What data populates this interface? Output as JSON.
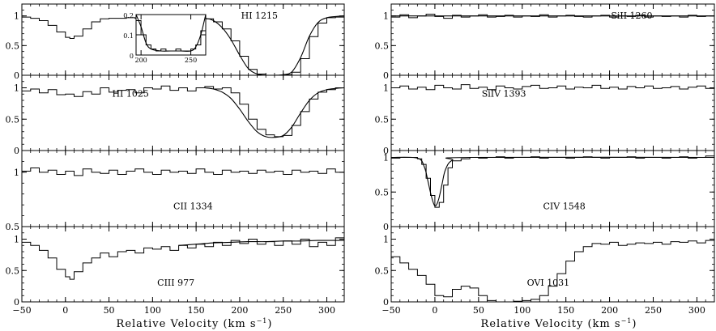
{
  "figure": {
    "left_column_xlabel": "Relative  Velocity  (km s",
    "right_column_xlabel": "Relative  Velocity  (km s",
    "xlabel_superscript": "−1",
    "xlabel_close": ")"
  },
  "chart_data": [
    {
      "type": "line",
      "column": "left",
      "row": 0,
      "label": "HI 1215",
      "xlim": [
        -50,
        320
      ],
      "ylim": [
        0,
        1.2
      ],
      "x_ticks": [],
      "y_ticks": [
        0,
        0.5,
        1
      ],
      "y_tick_labels": [
        "0",
        "0.5",
        "1"
      ],
      "series": [
        {
          "style": "step",
          "x": [
            -50,
            -40,
            -30,
            -20,
            -10,
            0,
            5,
            10,
            20,
            30,
            40,
            50,
            60,
            70,
            80,
            90,
            100,
            110,
            120,
            130,
            140,
            150,
            160,
            170,
            180,
            190,
            200,
            210,
            220,
            230,
            240,
            250,
            260,
            270,
            280,
            290,
            300,
            310,
            320
          ],
          "values": [
            0.98,
            0.96,
            0.92,
            0.84,
            0.73,
            0.64,
            0.62,
            0.66,
            0.78,
            0.9,
            0.95,
            0.96,
            0.96,
            0.97,
            0.96,
            0.97,
            0.98,
            0.97,
            0.97,
            0.98,
            0.98,
            0.97,
            0.95,
            0.9,
            0.78,
            0.58,
            0.32,
            0.1,
            0.02,
            0.0,
            0.0,
            0.01,
            0.05,
            0.28,
            0.65,
            0.88,
            0.97,
            0.98,
            0.98
          ]
        },
        {
          "style": "smooth",
          "x": [
            140,
            160,
            170,
            180,
            190,
            200,
            210,
            220,
            230,
            240,
            250,
            260,
            270,
            280,
            290,
            300,
            310,
            320
          ],
          "values": [
            0.98,
            0.96,
            0.92,
            0.8,
            0.6,
            0.34,
            0.11,
            0.02,
            0.0,
            0.0,
            0.01,
            0.06,
            0.3,
            0.66,
            0.89,
            0.97,
            0.99,
            1.0
          ]
        }
      ],
      "inset": {
        "xlim": [
          195,
          265
        ],
        "ylim": [
          0,
          0.2
        ],
        "x_ticks": [
          200,
          250
        ],
        "x_tick_labels": [
          "200",
          "250"
        ],
        "y_ticks": [
          0,
          0.1,
          0.2
        ],
        "y_tick_labels": [
          "0",
          "0.1",
          "0.2"
        ],
        "series": [
          {
            "style": "step",
            "x": [
              195,
              200,
              205,
              210,
              215,
              220,
              225,
              230,
              235,
              240,
              245,
              250,
              255,
              260,
              265
            ],
            "values": [
              0.17,
              0.1,
              0.05,
              0.03,
              0.02,
              0.03,
              0.02,
              0.02,
              0.03,
              0.02,
              0.02,
              0.03,
              0.05,
              0.12,
              0.2
            ]
          },
          {
            "style": "smooth",
            "x": [
              195,
              200,
              205,
              210,
              220,
              230,
              240,
              250,
              255,
              260,
              265
            ],
            "values": [
              0.2,
              0.14,
              0.06,
              0.03,
              0.02,
              0.02,
              0.02,
              0.02,
              0.04,
              0.1,
              0.2
            ]
          }
        ]
      }
    },
    {
      "type": "line",
      "column": "left",
      "row": 1,
      "label": "HI 1025",
      "xlim": [
        -50,
        320
      ],
      "ylim": [
        0,
        1.2
      ],
      "x_ticks": [],
      "y_ticks": [
        0,
        0.5,
        1
      ],
      "y_tick_labels": [
        "0",
        "0.5",
        "1"
      ],
      "series": [
        {
          "style": "step",
          "x": [
            -50,
            -40,
            -30,
            -20,
            -10,
            0,
            10,
            20,
            30,
            40,
            50,
            60,
            70,
            80,
            90,
            100,
            110,
            120,
            130,
            140,
            150,
            160,
            170,
            180,
            190,
            200,
            210,
            220,
            230,
            240,
            250,
            260,
            270,
            280,
            290,
            300,
            310,
            320
          ],
          "values": [
            0.95,
            0.98,
            0.92,
            0.97,
            0.89,
            0.9,
            0.86,
            0.94,
            0.9,
            1.0,
            0.93,
            0.96,
            0.97,
            0.92,
            1.0,
            0.98,
            1.03,
            0.96,
            1.0,
            0.95,
            1.0,
            1.02,
            0.98,
            1.0,
            0.92,
            0.74,
            0.5,
            0.34,
            0.25,
            0.22,
            0.24,
            0.4,
            0.62,
            0.82,
            0.93,
            0.97,
            1.0,
            0.98
          ]
        },
        {
          "style": "smooth",
          "x": [
            160,
            170,
            180,
            190,
            200,
            210,
            220,
            230,
            240,
            250,
            260,
            270,
            280,
            290,
            300,
            310,
            320
          ],
          "values": [
            1.0,
            0.98,
            0.93,
            0.83,
            0.66,
            0.46,
            0.3,
            0.22,
            0.21,
            0.24,
            0.38,
            0.6,
            0.8,
            0.92,
            0.97,
            0.99,
            1.0
          ]
        }
      ]
    },
    {
      "type": "line",
      "column": "left",
      "row": 2,
      "label": "CII 1334",
      "xlim": [
        -50,
        320
      ],
      "ylim": [
        0.5,
        1.2
      ],
      "x_ticks": [],
      "y_ticks": [
        0.5,
        1
      ],
      "y_tick_labels": [
        "0.5",
        "1"
      ],
      "series": [
        {
          "style": "step",
          "x": [
            -50,
            -40,
            -30,
            -20,
            -10,
            0,
            10,
            20,
            30,
            40,
            50,
            60,
            70,
            80,
            90,
            100,
            110,
            120,
            130,
            140,
            150,
            160,
            170,
            180,
            190,
            200,
            210,
            220,
            230,
            240,
            250,
            260,
            270,
            280,
            290,
            300,
            310,
            320
          ],
          "values": [
            1.01,
            1.04,
            1.0,
            1.02,
            0.98,
            1.01,
            0.97,
            1.03,
            1.0,
            0.99,
            1.02,
            0.98,
            1.01,
            1.03,
            1.0,
            0.98,
            1.02,
            1.0,
            1.01,
            0.99,
            1.03,
            1.0,
            0.98,
            1.02,
            1.0,
            1.01,
            0.99,
            1.02,
            1.0,
            1.01,
            0.98,
            1.02,
            1.0,
            1.01,
            0.99,
            1.03,
            1.0,
            1.01
          ]
        }
      ]
    },
    {
      "type": "line",
      "column": "left",
      "row": 3,
      "label": "CIII 977",
      "xlim": [
        -50,
        320
      ],
      "ylim": [
        0,
        1.2
      ],
      "x_ticks": [
        -50,
        0,
        50,
        100,
        150,
        200,
        250,
        300
      ],
      "x_tick_labels": [
        "−50",
        "0",
        "50",
        "100",
        "150",
        "200",
        "250",
        "300"
      ],
      "y_ticks": [
        0,
        0.5,
        1
      ],
      "y_tick_labels": [
        "0",
        "0.5",
        "1"
      ],
      "series": [
        {
          "style": "step",
          "x": [
            -50,
            -40,
            -30,
            -20,
            -10,
            0,
            5,
            10,
            20,
            30,
            40,
            50,
            60,
            70,
            80,
            90,
            100,
            110,
            120,
            130,
            140,
            150,
            160,
            170,
            180,
            190,
            200,
            210,
            220,
            230,
            240,
            250,
            260,
            270,
            280,
            290,
            300,
            310,
            320
          ],
          "values": [
            0.95,
            0.9,
            0.82,
            0.7,
            0.52,
            0.4,
            0.36,
            0.48,
            0.62,
            0.7,
            0.78,
            0.72,
            0.8,
            0.82,
            0.78,
            0.86,
            0.84,
            0.88,
            0.82,
            0.9,
            0.86,
            0.92,
            0.88,
            0.95,
            0.9,
            0.98,
            0.93,
            1.0,
            0.92,
            0.96,
            0.9,
            0.97,
            0.92,
            1.0,
            0.88,
            0.95,
            0.9,
            1.02,
            0.88
          ]
        },
        {
          "style": "smooth",
          "x": [
            130,
            150,
            170,
            190,
            210,
            230,
            250,
            270,
            290,
            310,
            320
          ],
          "values": [
            0.9,
            0.92,
            0.94,
            0.95,
            0.96,
            0.96,
            0.97,
            0.97,
            0.98,
            0.98,
            0.98
          ]
        }
      ]
    },
    {
      "type": "line",
      "column": "right",
      "row": 0,
      "label": "SiII 1260",
      "xlim": [
        -50,
        320
      ],
      "ylim": [
        0,
        1.2
      ],
      "x_ticks": [],
      "y_ticks": [
        0,
        0.5,
        1
      ],
      "y_tick_labels": [
        "0",
        "0.5",
        "1"
      ],
      "series": [
        {
          "style": "step",
          "x": [
            -50,
            -40,
            -30,
            -20,
            -10,
            0,
            10,
            20,
            30,
            40,
            50,
            60,
            70,
            80,
            90,
            100,
            110,
            120,
            130,
            140,
            150,
            160,
            170,
            180,
            190,
            200,
            210,
            220,
            230,
            240,
            250,
            260,
            270,
            280,
            290,
            300,
            310,
            320
          ],
          "values": [
            0.98,
            1.02,
            0.97,
            1.0,
            1.03,
            0.99,
            0.96,
            1.01,
            0.98,
            1.0,
            1.02,
            0.98,
            0.99,
            1.01,
            0.98,
            1.0,
            0.99,
            1.02,
            0.98,
            1.0,
            1.01,
            0.99,
            0.98,
            1.0,
            1.01,
            0.98,
            1.0,
            0.99,
            1.01,
            0.98,
            1.0,
            0.99,
            1.0,
            0.98,
            1.01,
            0.99,
            1.0,
            0.99
          ]
        },
        {
          "style": "smooth",
          "x": [
            -50,
            320
          ],
          "values": [
            1.0,
            1.0
          ]
        }
      ]
    },
    {
      "type": "line",
      "column": "right",
      "row": 1,
      "label": "SiIV 1393",
      "xlim": [
        -50,
        320
      ],
      "ylim": [
        0,
        1.2
      ],
      "x_ticks": [],
      "y_ticks": [
        0,
        0.5,
        1
      ],
      "y_tick_labels": [
        "0",
        "0.5",
        "1"
      ],
      "series": [
        {
          "style": "step",
          "x": [
            -50,
            -40,
            -30,
            -20,
            -10,
            0,
            10,
            20,
            30,
            40,
            50,
            60,
            70,
            80,
            90,
            100,
            110,
            120,
            130,
            140,
            150,
            160,
            170,
            180,
            190,
            200,
            210,
            220,
            230,
            240,
            250,
            260,
            270,
            280,
            290,
            300,
            310,
            320
          ],
          "values": [
            1.0,
            1.03,
            0.98,
            1.01,
            0.97,
            1.04,
            1.0,
            0.98,
            1.05,
            0.99,
            1.01,
            0.97,
            1.03,
            1.0,
            0.98,
            1.02,
            1.04,
            0.99,
            1.0,
            1.03,
            0.98,
            1.01,
            1.0,
            1.04,
            0.99,
            1.01,
            0.98,
            1.02,
            1.0,
            1.03,
            0.99,
            1.0,
            1.02,
            0.98,
            1.01,
            1.03,
            0.99,
            1.0
          ]
        }
      ]
    },
    {
      "type": "line",
      "column": "right",
      "row": 2,
      "label": "CIV 1548",
      "xlim": [
        -50,
        320
      ],
      "ylim": [
        0,
        1.1
      ],
      "x_ticks": [],
      "y_ticks": [
        0,
        0.5,
        1
      ],
      "y_tick_labels": [
        "0",
        "0.5",
        "1"
      ],
      "series": [
        {
          "style": "step",
          "x": [
            -50,
            -40,
            -30,
            -20,
            -15,
            -10,
            -5,
            0,
            5,
            10,
            15,
            20,
            30,
            40,
            50,
            60,
            70,
            80,
            90,
            100,
            110,
            120,
            130,
            140,
            150,
            160,
            170,
            180,
            190,
            200,
            210,
            220,
            230,
            240,
            250,
            260,
            270,
            280,
            290,
            300,
            310,
            320
          ],
          "values": [
            0.99,
            1.0,
            1.0,
            0.98,
            0.9,
            0.7,
            0.45,
            0.28,
            0.35,
            0.6,
            0.85,
            0.95,
            0.98,
            1.0,
            0.99,
            1.0,
            1.01,
            0.99,
            1.0,
            1.0,
            1.01,
            0.99,
            1.0,
            1.0,
            0.99,
            1.0,
            1.01,
            1.0,
            0.99,
            1.0,
            1.0,
            1.01,
            0.99,
            1.0,
            1.0,
            0.99,
            1.0,
            1.01,
            0.99,
            1.0,
            1.02,
            1.0
          ]
        },
        {
          "style": "smooth",
          "x": [
            -50,
            -20,
            -12,
            -8,
            -4,
            0,
            4,
            8,
            12,
            20,
            40,
            320
          ],
          "values": [
            1.0,
            0.99,
            0.86,
            0.66,
            0.44,
            0.3,
            0.38,
            0.6,
            0.82,
            0.96,
            1.0,
            1.0
          ]
        }
      ]
    },
    {
      "type": "line",
      "column": "right",
      "row": 3,
      "label": "OVI 1031",
      "xlim": [
        -50,
        320
      ],
      "ylim": [
        0,
        1.2
      ],
      "x_ticks": [
        -50,
        0,
        50,
        100,
        150,
        200,
        250,
        300
      ],
      "x_tick_labels": [
        "−50",
        "0",
        "50",
        "100",
        "150",
        "200",
        "250",
        "300"
      ],
      "y_ticks": [
        0,
        0.5,
        1
      ],
      "y_tick_labels": [
        "0",
        "0.5",
        "1"
      ],
      "series": [
        {
          "style": "step",
          "x": [
            -50,
            -40,
            -30,
            -20,
            -10,
            0,
            10,
            20,
            30,
            40,
            50,
            60,
            70,
            80,
            90,
            100,
            110,
            120,
            130,
            140,
            150,
            160,
            170,
            180,
            190,
            200,
            210,
            220,
            230,
            240,
            250,
            260,
            270,
            280,
            290,
            300,
            310,
            320
          ],
          "values": [
            0.72,
            0.62,
            0.52,
            0.42,
            0.28,
            0.1,
            0.08,
            0.2,
            0.25,
            0.22,
            0.1,
            0.02,
            0.0,
            0.0,
            0.01,
            0.02,
            0.04,
            0.1,
            0.25,
            0.45,
            0.65,
            0.8,
            0.88,
            0.93,
            0.92,
            0.95,
            0.9,
            0.92,
            0.94,
            0.93,
            0.95,
            0.92,
            0.96,
            0.95,
            0.97,
            0.94,
            0.98,
            0.97
          ]
        }
      ]
    }
  ]
}
